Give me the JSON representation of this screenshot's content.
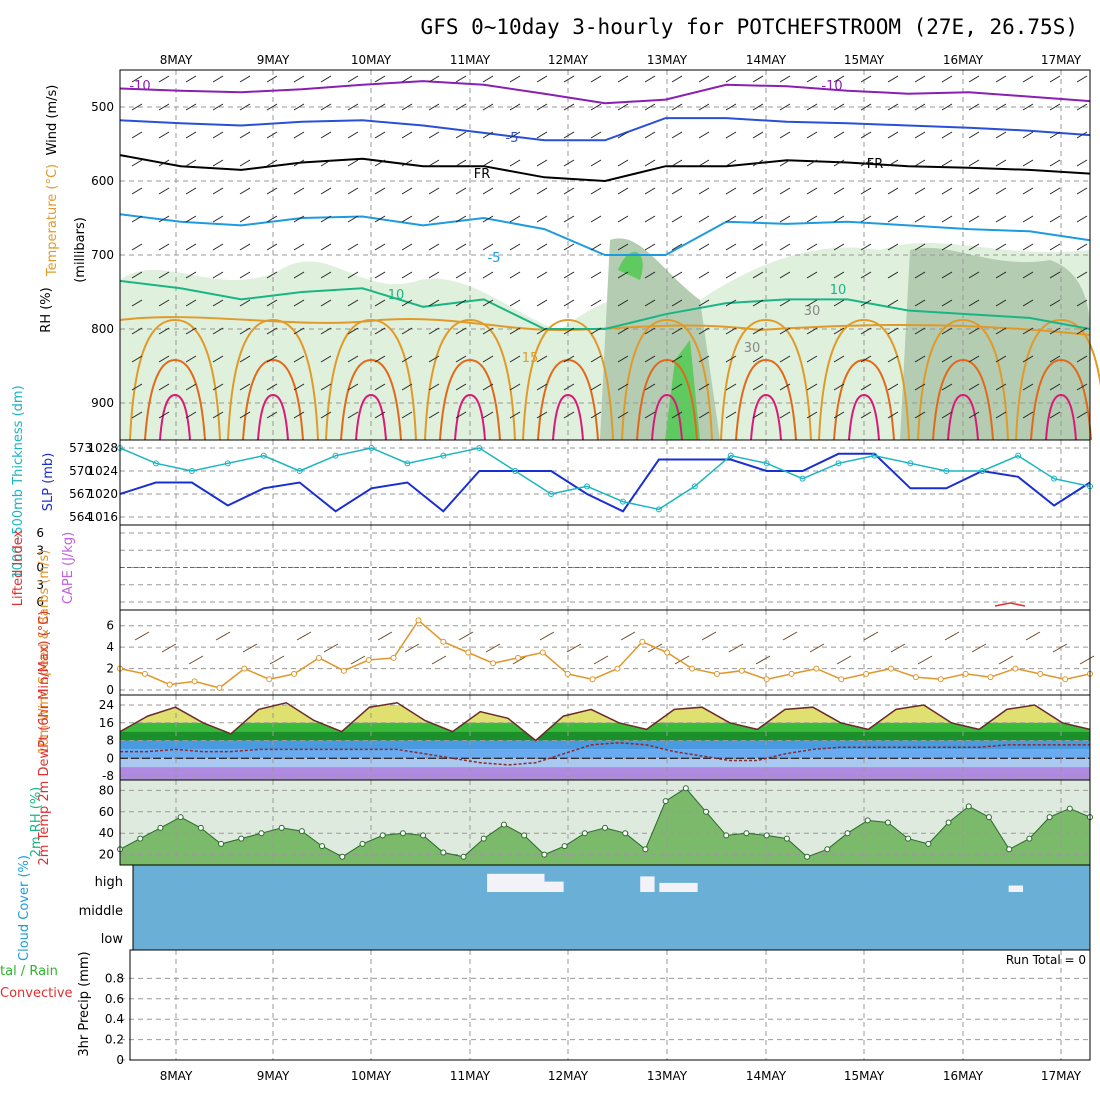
{
  "title": "GFS 0~10day 3-hourly for POTCHEFSTROOM (27E, 26.75S)",
  "colors": {
    "purple": "#8a1fb0",
    "blue": "#2a4fd8",
    "sky": "#1e9be0",
    "teal": "#1ab585",
    "orange": "#e09a2a",
    "dorange": "#e06a1a",
    "magenta": "#d81a78",
    "rhlight": "#dff0dc",
    "rhmid": "#b4ccb2",
    "rhdark": "#8ea68c",
    "rhgreen": "#5fca5f",
    "cloud": "#6aafd6",
    "slp": "#1a2fd0",
    "thick": "#1ab5c0",
    "wind": "#e0962a",
    "tempfill": "#2a9a2a",
    "dew": "#8a2a2a"
  },
  "chart_data": [
    {
      "type": "contour",
      "panel": "upper-air",
      "ylabel_parts": [
        "Wind (m/s)",
        "Temperature (°C)",
        "RH (%)",
        "(millibars)"
      ],
      "y_ticks": [
        500,
        600,
        700,
        800,
        900
      ],
      "ylim": [
        450,
        950
      ],
      "x_dates": [
        "8MAY",
        "9MAY",
        "10MAY",
        "11MAY",
        "12MAY",
        "13MAY",
        "14MAY",
        "15MAY",
        "16MAY",
        "17MAY"
      ],
      "contour_labels": [
        "-10",
        "-10",
        "-5",
        "FR",
        "FR",
        "-5",
        "10",
        "10",
        "30",
        "30",
        "15"
      ],
      "isotherms": [
        {
          "name": "-10",
          "color": "purple",
          "pressure": [
            475,
            478,
            480,
            476,
            470,
            465,
            470,
            482,
            495,
            490,
            470,
            472,
            478,
            482,
            480,
            486,
            492
          ]
        },
        {
          "name": "-5",
          "color": "blue",
          "pressure": [
            518,
            522,
            525,
            520,
            518,
            525,
            535,
            545,
            545,
            515,
            515,
            520,
            522,
            525,
            528,
            532,
            538
          ]
        },
        {
          "name": "FR",
          "color": "black",
          "pressure": [
            565,
            580,
            585,
            575,
            570,
            580,
            580,
            595,
            600,
            580,
            580,
            572,
            575,
            580,
            582,
            585,
            590
          ]
        },
        {
          "name": "5",
          "color": "sky",
          "pressure": [
            645,
            655,
            660,
            650,
            648,
            660,
            650,
            665,
            700,
            700,
            655,
            658,
            655,
            660,
            665,
            668,
            680
          ]
        },
        {
          "name": "10",
          "color": "teal",
          "pressure": [
            735,
            745,
            760,
            750,
            745,
            770,
            760,
            800,
            800,
            780,
            765,
            760,
            760,
            775,
            780,
            785,
            800
          ]
        }
      ]
    },
    {
      "type": "line",
      "panel": "slp-thickness",
      "ylabel": "1000~500mb Thickness (dm)",
      "ylabel2": "SLP (mb)",
      "left_ticks": [
        564,
        567,
        570,
        573
      ],
      "right_ticks": [
        1016,
        1020,
        1024,
        1028
      ],
      "series": [
        {
          "name": "SLP",
          "axis": "right",
          "values": [
            1020,
            1022,
            1022,
            1018,
            1021,
            1022,
            1017,
            1021,
            1022,
            1017,
            1024,
            1024,
            1024,
            1020,
            1017,
            1026,
            1026,
            1026,
            1024,
            1024,
            1027,
            1027,
            1021,
            1021,
            1024,
            1023,
            1018,
            1022
          ]
        },
        {
          "name": "Thickness",
          "axis": "left",
          "values": [
            573,
            571,
            570,
            571,
            572,
            570,
            572,
            573,
            571,
            572,
            573,
            570,
            567,
            568,
            566,
            565,
            568,
            572,
            571,
            569,
            571,
            572,
            571,
            570,
            570,
            572,
            569,
            568
          ]
        }
      ]
    },
    {
      "type": "line",
      "panel": "cape-li",
      "ylabel": "Lifted Index",
      "ylabel2": "CAPE (J/kg)",
      "left_ticks": [
        6,
        3,
        0,
        -3,
        -6
      ],
      "left_tick_labels": [
        "6",
        "3",
        "0",
        "3",
        "6"
      ],
      "values": []
    },
    {
      "type": "line",
      "panel": "wind10m",
      "ylabel": "10m Wind Speed & Barbs (m/s)",
      "y_ticks": [
        0,
        2,
        4,
        6
      ],
      "ylim": [
        0,
        7
      ],
      "values": [
        2.0,
        1.5,
        0.5,
        0.8,
        0.2,
        2.0,
        1.0,
        1.5,
        3.0,
        1.8,
        2.8,
        3.0,
        6.5,
        4.5,
        3.5,
        2.5,
        3.0,
        3.5,
        1.5,
        1.0,
        2.0,
        4.5,
        3.5,
        2.0,
        1.5,
        1.8,
        1.0,
        1.5,
        2.0,
        1.0,
        1.5,
        2.0,
        1.2,
        1.0,
        1.5,
        1.2,
        2.0,
        1.5,
        1.0,
        1.5
      ]
    },
    {
      "type": "area",
      "panel": "temp2m",
      "ylabel": "2m Temp 2m DewPt (6hr Min/Max) (°C)",
      "y_ticks": [
        -8,
        0,
        8,
        16,
        24
      ],
      "y_tick_labels": [
        "-8",
        "0",
        "8",
        "16",
        "24"
      ],
      "series": [
        {
          "name": "Temp",
          "values": [
            12,
            19,
            23,
            16,
            11,
            22,
            25,
            17,
            12,
            23,
            25,
            17,
            12,
            21,
            18,
            8,
            19,
            22,
            16,
            13,
            22,
            23,
            16,
            13,
            22,
            23,
            16,
            13,
            22,
            24,
            16,
            13,
            22,
            24,
            16,
            13
          ]
        },
        {
          "name": "DewPt",
          "values": [
            3,
            3,
            4,
            3,
            3,
            4,
            4,
            4,
            4,
            4,
            4,
            2,
            0,
            -2,
            -3,
            -2,
            2,
            6,
            7,
            6,
            3,
            1,
            -1,
            -1,
            2,
            4,
            5,
            5,
            5,
            5,
            5,
            5,
            6,
            6,
            6,
            6
          ]
        }
      ]
    },
    {
      "type": "area",
      "panel": "rh2m",
      "ylabel": "2m RH (%)",
      "y_ticks": [
        20,
        40,
        60,
        80
      ],
      "ylim": [
        15,
        85
      ],
      "values": [
        25,
        35,
        45,
        55,
        45,
        30,
        35,
        40,
        45,
        42,
        28,
        18,
        30,
        38,
        40,
        38,
        22,
        18,
        35,
        48,
        38,
        20,
        28,
        40,
        45,
        40,
        25,
        70,
        82,
        60,
        38,
        40,
        38,
        35,
        18,
        25,
        40,
        52,
        50,
        35,
        30,
        50,
        65,
        55,
        25,
        35,
        55,
        63,
        55
      ]
    },
    {
      "type": "bar",
      "panel": "cloud",
      "ylabel": "Cloud Cover (%)",
      "rows": [
        "high",
        "middle",
        "low"
      ],
      "blocks": [
        {
          "x0": 0.37,
          "x1": 0.43,
          "h": 0.7
        },
        {
          "x0": 0.43,
          "x1": 0.45,
          "h": 0.4
        },
        {
          "x0": 0.53,
          "x1": 0.545,
          "h": 0.6
        },
        {
          "x0": 0.55,
          "x1": 0.59,
          "h": 0.35
        },
        {
          "x0": 0.915,
          "x1": 0.93,
          "h": 0.25
        }
      ]
    },
    {
      "type": "bar",
      "panel": "precip",
      "ylabel": "3hr Precip (mm)",
      "legend_left": [
        "tal / Rain",
        "Convective"
      ],
      "y_ticks": [
        0,
        0.2,
        0.4,
        0.6,
        0.8
      ],
      "y_tick_labels": [
        "0",
        "0.2",
        "0.4",
        "0.6",
        "0.8"
      ],
      "ylim": [
        0,
        1
      ],
      "run_total": "Run Total = 0",
      "values": []
    }
  ]
}
